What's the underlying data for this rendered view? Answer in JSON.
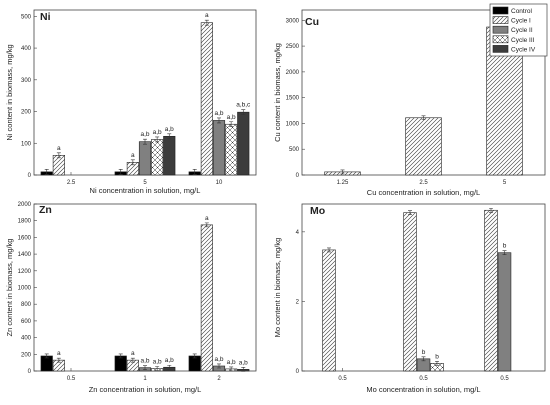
{
  "legend": {
    "entries": [
      "Control",
      "Cycle I",
      "Cycle II",
      "Cycle III",
      "Cycle IV"
    ],
    "placement": "top-right"
  },
  "series_styles": {
    "Control": {
      "fill": "#000000",
      "pattern": "solid"
    },
    "Cycle I": {
      "fill": "#ffffff",
      "pattern": "diagonal"
    },
    "Cycle II": {
      "fill": "#808080",
      "pattern": "solid"
    },
    "Cycle III": {
      "fill": "#ffffff",
      "pattern": "cross"
    },
    "Cycle IV": {
      "fill": "#3c3c3c",
      "pattern": "solid"
    }
  },
  "chart_data": [
    {
      "type": "bar",
      "title": "Ni",
      "xlabel": "Ni concentration in solution, mg/L",
      "ylabel": "Ni content in biomass, mg/kg",
      "ylim": [
        0,
        520
      ],
      "yticks": [
        0,
        100,
        200,
        300,
        400,
        500
      ],
      "categories": [
        "2.5",
        "5",
        "10"
      ],
      "series": [
        {
          "name": "Control",
          "values": [
            10,
            10,
            10
          ]
        },
        {
          "name": "Cycle I",
          "values": [
            62,
            40,
            480
          ]
        },
        {
          "name": "Cycle II",
          "values": [
            null,
            105,
            172
          ]
        },
        {
          "name": "Cycle III",
          "values": [
            null,
            112,
            160
          ]
        },
        {
          "name": "Cycle IV",
          "values": [
            null,
            122,
            198
          ]
        }
      ],
      "annotations": [
        {
          "category": 0,
          "series": 1,
          "text": "a"
        },
        {
          "category": 1,
          "series": 1,
          "text": "a"
        },
        {
          "category": 1,
          "series": 2,
          "text": "a,b"
        },
        {
          "category": 1,
          "series": 3,
          "text": "a,b"
        },
        {
          "category": 1,
          "series": 4,
          "text": "a,b"
        },
        {
          "category": 2,
          "series": 1,
          "text": "a"
        },
        {
          "category": 2,
          "series": 2,
          "text": "a,b"
        },
        {
          "category": 2,
          "series": 3,
          "text": "a,b"
        },
        {
          "category": 2,
          "series": 4,
          "text": "a,b,c"
        }
      ]
    },
    {
      "type": "bar",
      "title": "Cu",
      "xlabel": "Cu concentration in solution, mg/L",
      "ylabel": "Cu content in biomass, mg/kg",
      "ylim": [
        0,
        3200
      ],
      "yticks": [
        0,
        500,
        1000,
        1500,
        2000,
        2500,
        3000
      ],
      "categories": [
        "1.25",
        "2.5",
        "5"
      ],
      "series": [
        {
          "name": "Cycle I",
          "values": [
            60,
            1110,
            2870
          ]
        }
      ],
      "annotations": []
    },
    {
      "type": "bar",
      "title": "Zn",
      "xlabel": "Zn concentration in solution, mg/L",
      "ylabel": "Zn content in biomass, mg/kg",
      "ylim": [
        0,
        2000
      ],
      "yticks": [
        0,
        200,
        400,
        600,
        800,
        1000,
        1200,
        1400,
        1600,
        1800,
        2000
      ],
      "categories": [
        "0.5",
        "1",
        "2"
      ],
      "series": [
        {
          "name": "Control",
          "values": [
            180,
            180,
            180
          ]
        },
        {
          "name": "Cycle I",
          "values": [
            130,
            130,
            1750
          ]
        },
        {
          "name": "Cycle II",
          "values": [
            null,
            40,
            60
          ]
        },
        {
          "name": "Cycle III",
          "values": [
            null,
            30,
            25
          ]
        },
        {
          "name": "Cycle IV",
          "values": [
            null,
            45,
            20
          ]
        }
      ],
      "annotations": [
        {
          "category": 0,
          "series": 1,
          "text": "a"
        },
        {
          "category": 1,
          "series": 1,
          "text": "a"
        },
        {
          "category": 1,
          "series": 2,
          "text": "a,b"
        },
        {
          "category": 1,
          "series": 3,
          "text": "a,b"
        },
        {
          "category": 1,
          "series": 4,
          "text": "a,b"
        },
        {
          "category": 2,
          "series": 1,
          "text": "a"
        },
        {
          "category": 2,
          "series": 2,
          "text": "a,b"
        },
        {
          "category": 2,
          "series": 3,
          "text": "a,b"
        },
        {
          "category": 2,
          "series": 4,
          "text": "a,b"
        }
      ]
    },
    {
      "type": "bar",
      "title": "Mo",
      "xlabel": "Mo concentration in solution, mg/L",
      "ylabel": "Mo content in biomass, mg/kg",
      "ylim": [
        0,
        4.8
      ],
      "yticks": [
        0,
        2,
        4
      ],
      "categories": [
        "0.5",
        "0.5",
        "0.5"
      ],
      "series": [
        {
          "name": "Cycle I",
          "values": [
            3.48,
            4.55,
            4.62
          ]
        },
        {
          "name": "Cycle II",
          "values": [
            null,
            0.35,
            3.4
          ]
        },
        {
          "name": "Cycle III",
          "values": [
            null,
            0.22,
            null
          ]
        }
      ],
      "annotations": [
        {
          "category": 1,
          "series": 1,
          "text": "b"
        },
        {
          "category": 1,
          "series": 2,
          "text": "b"
        },
        {
          "category": 2,
          "series": 1,
          "text": "b"
        }
      ]
    }
  ]
}
